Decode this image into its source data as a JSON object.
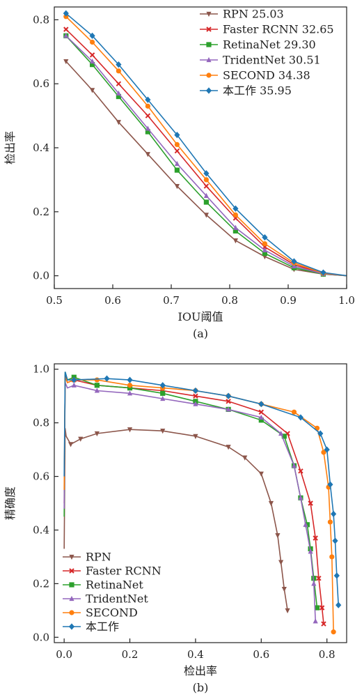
{
  "chart_data": [
    {
      "type": "line",
      "panel_label": "(a)",
      "xlabel": "IOU阈值",
      "ylabel": "检出率",
      "xlim": [
        0.5,
        1.0
      ],
      "ylim": [
        -0.04,
        0.84
      ],
      "xticks": [
        0.5,
        0.6,
        0.7,
        0.8,
        0.9,
        1.0
      ],
      "xtick_labels": [
        "0.5",
        "0.6",
        "0.7",
        "0.8",
        "0.9",
        "1.0"
      ],
      "yticks": [
        0.0,
        0.2,
        0.4,
        0.6,
        0.8
      ],
      "ytick_labels": [
        "0.0",
        "0.2",
        "0.4",
        "0.6",
        "0.8"
      ],
      "grid": false,
      "legend_position": "top-right",
      "x": [
        0.52,
        0.565,
        0.61,
        0.66,
        0.71,
        0.76,
        0.81,
        0.86,
        0.91,
        0.96,
        1.0
      ],
      "series": [
        {
          "name": "RPN 25.03",
          "color": "#8c564b",
          "marker": "triangle-down",
          "values": [
            0.67,
            0.58,
            0.48,
            0.38,
            0.28,
            0.19,
            0.11,
            0.06,
            0.02,
            0.005,
            0.0
          ]
        },
        {
          "name": "Faster RCNN 32.65",
          "color": "#d62728",
          "marker": "x",
          "values": [
            0.77,
            0.69,
            0.6,
            0.5,
            0.39,
            0.28,
            0.18,
            0.09,
            0.035,
            0.007,
            0.0
          ]
        },
        {
          "name": "RetinaNet 29.30",
          "color": "#2ca02c",
          "marker": "square",
          "values": [
            0.75,
            0.66,
            0.56,
            0.45,
            0.33,
            0.23,
            0.14,
            0.07,
            0.025,
            0.005,
            0.0
          ]
        },
        {
          "name": "TridentNet 30.51",
          "color": "#9467bd",
          "marker": "triangle-up",
          "values": [
            0.75,
            0.67,
            0.57,
            0.46,
            0.35,
            0.25,
            0.15,
            0.08,
            0.03,
            0.006,
            0.0
          ]
        },
        {
          "name": "SECOND 34.38",
          "color": "#ff7f0e",
          "marker": "circle",
          "values": [
            0.81,
            0.73,
            0.64,
            0.53,
            0.41,
            0.3,
            0.19,
            0.1,
            0.04,
            0.008,
            0.0
          ]
        },
        {
          "name": "本工作 35.95",
          "color": "#1f77b4",
          "marker": "diamond",
          "values": [
            0.82,
            0.75,
            0.66,
            0.55,
            0.44,
            0.32,
            0.21,
            0.12,
            0.045,
            0.01,
            0.0
          ]
        }
      ]
    },
    {
      "type": "line",
      "panel_label": "(b)",
      "xlabel": "检出率",
      "ylabel": "精确度",
      "xlim": [
        -0.03,
        0.86
      ],
      "ylim": [
        -0.02,
        1.02
      ],
      "xticks": [
        0.0,
        0.2,
        0.4,
        0.6,
        0.8
      ],
      "xtick_labels": [
        "0.0",
        "0.2",
        "0.4",
        "0.6",
        "0.8"
      ],
      "yticks": [
        0.0,
        0.2,
        0.4,
        0.6,
        0.8,
        1.0
      ],
      "ytick_labels": [
        "0.0",
        "0.2",
        "0.4",
        "0.6",
        "0.8",
        "1.0"
      ],
      "grid": false,
      "legend_position": "bottom-left",
      "series": [
        {
          "name": "RPN",
          "color": "#8c564b",
          "marker": "triangle-down",
          "x": [
            0.0,
            0.003,
            0.006,
            0.02,
            0.05,
            0.1,
            0.2,
            0.3,
            0.4,
            0.5,
            0.55,
            0.6,
            0.63,
            0.65,
            0.66,
            0.67,
            0.68
          ],
          "y": [
            0.33,
            0.78,
            0.75,
            0.72,
            0.74,
            0.76,
            0.775,
            0.77,
            0.75,
            0.71,
            0.67,
            0.61,
            0.5,
            0.38,
            0.28,
            0.18,
            0.1
          ]
        },
        {
          "name": "Faster RCNN",
          "color": "#d62728",
          "marker": "x",
          "x": [
            0.0,
            0.003,
            0.01,
            0.03,
            0.1,
            0.2,
            0.3,
            0.4,
            0.5,
            0.6,
            0.68,
            0.72,
            0.75,
            0.765,
            0.775,
            0.785,
            0.79
          ],
          "y": [
            0.5,
            0.98,
            0.95,
            0.96,
            0.94,
            0.93,
            0.92,
            0.9,
            0.88,
            0.84,
            0.76,
            0.62,
            0.5,
            0.37,
            0.22,
            0.11,
            0.05
          ]
        },
        {
          "name": "RetinaNet",
          "color": "#2ca02c",
          "marker": "square",
          "x": [
            0.0,
            0.003,
            0.01,
            0.03,
            0.1,
            0.2,
            0.3,
            0.4,
            0.5,
            0.6,
            0.67,
            0.7,
            0.72,
            0.74,
            0.75,
            0.76,
            0.77
          ],
          "y": [
            0.45,
            0.99,
            0.96,
            0.97,
            0.94,
            0.93,
            0.91,
            0.88,
            0.85,
            0.81,
            0.75,
            0.64,
            0.52,
            0.42,
            0.33,
            0.22,
            0.11
          ]
        },
        {
          "name": "TridentNet",
          "color": "#9467bd",
          "marker": "triangle-up",
          "x": [
            0.0,
            0.003,
            0.01,
            0.03,
            0.1,
            0.2,
            0.3,
            0.4,
            0.5,
            0.6,
            0.66,
            0.7,
            0.72,
            0.735,
            0.75,
            0.76,
            0.765
          ],
          "y": [
            0.48,
            0.95,
            0.93,
            0.94,
            0.92,
            0.91,
            0.89,
            0.87,
            0.85,
            0.82,
            0.76,
            0.64,
            0.52,
            0.42,
            0.32,
            0.2,
            0.06
          ]
        },
        {
          "name": "SECOND",
          "color": "#ff7f0e",
          "marker": "circle",
          "x": [
            0.0,
            0.003,
            0.01,
            0.03,
            0.1,
            0.2,
            0.3,
            0.4,
            0.5,
            0.6,
            0.7,
            0.77,
            0.79,
            0.805,
            0.81,
            0.815,
            0.82
          ],
          "y": [
            0.55,
            0.97,
            0.95,
            0.96,
            0.96,
            0.94,
            0.93,
            0.92,
            0.9,
            0.87,
            0.84,
            0.78,
            0.69,
            0.56,
            0.43,
            0.3,
            0.02
          ]
        },
        {
          "name": "本工作",
          "color": "#1f77b4",
          "marker": "diamond",
          "x": [
            0.0,
            0.003,
            0.01,
            0.03,
            0.13,
            0.2,
            0.3,
            0.4,
            0.5,
            0.6,
            0.72,
            0.78,
            0.8,
            0.81,
            0.82,
            0.825,
            0.83,
            0.835
          ],
          "y": [
            0.6,
            0.99,
            0.96,
            0.96,
            0.965,
            0.96,
            0.94,
            0.92,
            0.9,
            0.87,
            0.82,
            0.76,
            0.7,
            0.57,
            0.46,
            0.36,
            0.23,
            0.12
          ]
        }
      ]
    }
  ]
}
